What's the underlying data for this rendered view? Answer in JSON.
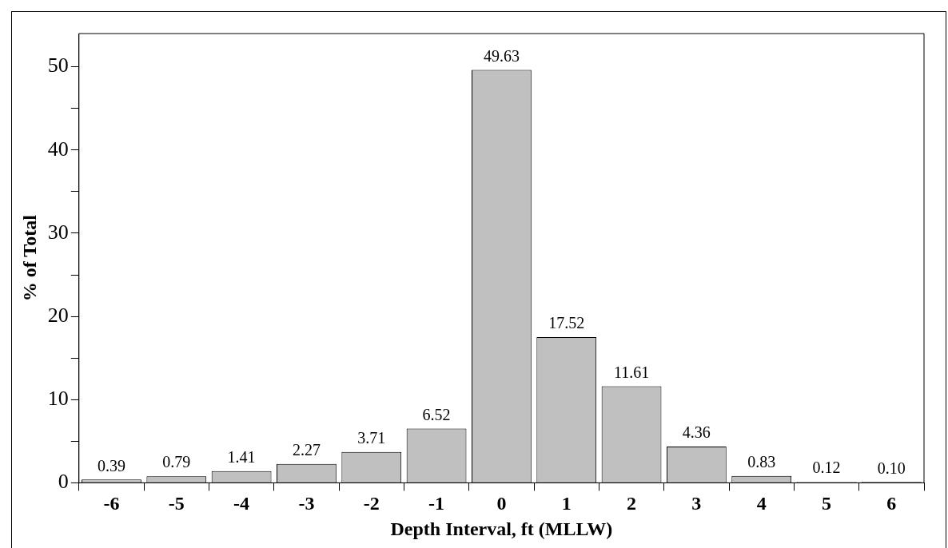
{
  "chart_data": {
    "type": "bar",
    "xlabel": "Depth Interval, ft (MLLW)",
    "ylabel": "% of Total",
    "categories": [
      "-6",
      "-5",
      "-4",
      "-3",
      "-2",
      "-1",
      "0",
      "1",
      "2",
      "3",
      "4",
      "5",
      "6"
    ],
    "values": [
      0.39,
      0.79,
      1.41,
      2.27,
      3.71,
      6.52,
      49.63,
      17.52,
      11.61,
      4.36,
      0.83,
      0.12,
      0.1
    ],
    "value_labels": [
      "0.39",
      "0.79",
      "1.41",
      "2.27",
      "3.71",
      "6.52",
      "49.63",
      "17.52",
      "11.61",
      "4.36",
      "0.83",
      "0.12",
      "0.10"
    ],
    "color": "#c0c0c0",
    "ylim": [
      0,
      54
    ],
    "yticks": [
      0,
      {
        "value": 5,
        "label": null
      },
      10,
      {
        "value": 15,
        "label": null
      },
      20,
      {
        "value": 25,
        "label": null
      },
      30,
      {
        "value": 35,
        "label": null
      },
      40,
      {
        "value": 45,
        "label": null
      },
      50
    ],
    "grid": false,
    "legend": false
  }
}
